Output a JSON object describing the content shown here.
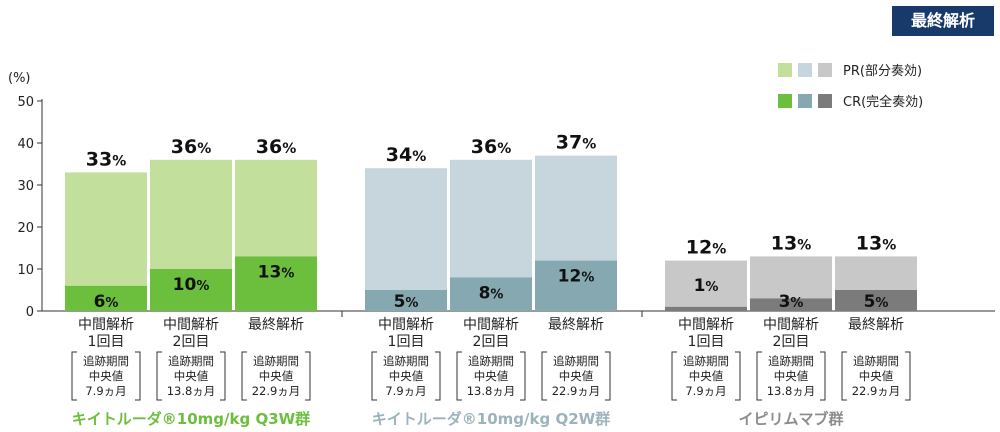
{
  "badge": "最終解析",
  "chart_data": {
    "type": "bar",
    "stacked": true,
    "y_unit": "(%)",
    "ylim": [
      0,
      50
    ],
    "yticks": [
      "0",
      "10",
      "20",
      "30",
      "40",
      "50"
    ],
    "legend": {
      "placement": "top-right",
      "entries": [
        "PR(部分奏効)",
        "CR(完全奏効)"
      ]
    },
    "groups": [
      {
        "name": "キイトルーダ®10mg/kg Q3W群",
        "color": "#6bbf3c",
        "colors": {
          "pr": "#c2df9c",
          "cr": "#6bbf3c"
        },
        "bars": [
          {
            "total": 33,
            "cr": 6,
            "total_label": "33%",
            "cr_label": "6%",
            "label_line1": "中間解析",
            "label_line2": "1回目",
            "box": [
              "追跡期間",
              "中央値",
              "7.9ヵ月"
            ]
          },
          {
            "total": 36,
            "cr": 10,
            "total_label": "36%",
            "cr_label": "10%",
            "label_line1": "中間解析",
            "label_line2": "2回目",
            "box": [
              "追跡期間",
              "中央値",
              "13.8ヵ月"
            ]
          },
          {
            "total": 36,
            "cr": 13,
            "total_label": "36%",
            "cr_label": "13%",
            "label_line1": "最終解析",
            "label_line2": "",
            "box": [
              "追跡期間",
              "中央値",
              "22.9ヵ月"
            ]
          }
        ]
      },
      {
        "name": "キイトルーダ®10mg/kg Q2W群",
        "color": "#9ab3bc",
        "colors": {
          "pr": "#c6d6dc",
          "cr": "#86a8b0"
        },
        "bars": [
          {
            "total": 34,
            "cr": 5,
            "total_label": "34%",
            "cr_label": "5%",
            "label_line1": "中間解析",
            "label_line2": "1回目",
            "box": [
              "追跡期間",
              "中央値",
              "7.9ヵ月"
            ]
          },
          {
            "total": 36,
            "cr": 8,
            "total_label": "36%",
            "cr_label": "8%",
            "label_line1": "中間解析",
            "label_line2": "2回目",
            "box": [
              "追跡期間",
              "中央値",
              "13.8ヵ月"
            ]
          },
          {
            "total": 37,
            "cr": 12,
            "total_label": "37%",
            "cr_label": "12%",
            "label_line1": "最終解析",
            "label_line2": "",
            "box": [
              "追跡期間",
              "中央値",
              "22.9ヵ月"
            ]
          }
        ]
      },
      {
        "name": "イピリムマブ群",
        "color": "#8c8c8c",
        "colors": {
          "pr": "#c8c8c8",
          "cr": "#7b7b7b"
        },
        "bars": [
          {
            "total": 12,
            "cr": 1,
            "total_label": "12%",
            "cr_label": "1%",
            "label_line1": "中間解析",
            "label_line2": "1回目",
            "box": [
              "追跡期間",
              "中央値",
              "7.9ヵ月"
            ]
          },
          {
            "total": 13,
            "cr": 3,
            "total_label": "13%",
            "cr_label": "3%",
            "label_line1": "中間解析",
            "label_line2": "2回目",
            "box": [
              "追跡期間",
              "中央値",
              "13.8ヵ月"
            ]
          },
          {
            "total": 13,
            "cr": 5,
            "total_label": "13%",
            "cr_label": "5%",
            "label_line1": "最終解析",
            "label_line2": "",
            "box": [
              "追跡期間",
              "中央値",
              "22.9ヵ月"
            ]
          }
        ]
      }
    ]
  }
}
